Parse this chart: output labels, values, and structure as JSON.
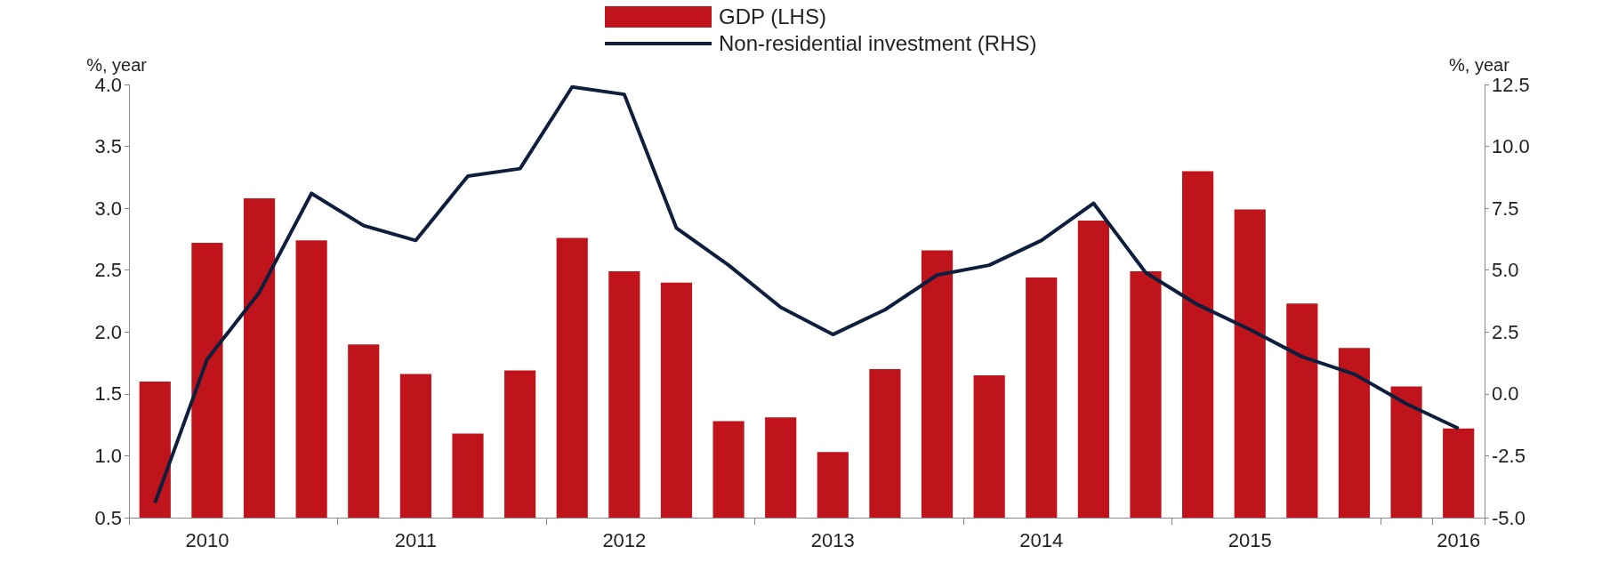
{
  "chart_data": {
    "type": "bar",
    "categories": [
      null,
      "2010",
      null,
      null,
      null,
      "2011",
      null,
      null,
      null,
      "2012",
      null,
      null,
      null,
      "2013",
      null,
      null,
      null,
      "2014",
      null,
      null,
      null,
      "2015",
      null,
      null,
      null,
      "2016"
    ],
    "series": [
      {
        "name": "GDP (LHS)",
        "color": "#c0141c",
        "values": [
          1.6,
          2.72,
          3.08,
          2.74,
          1.9,
          1.66,
          1.18,
          1.69,
          2.76,
          2.49,
          2.4,
          1.28,
          1.31,
          1.03,
          1.7,
          2.66,
          1.65,
          2.44,
          2.9,
          2.49,
          3.3,
          2.99,
          2.23,
          1.87,
          1.56,
          1.22
        ]
      },
      {
        "name": "Non-residential investment (RHS)",
        "type": "line",
        "axis": "y2",
        "color": "#0d1f3c",
        "values": [
          -4.4,
          1.4,
          4.1,
          8.1,
          6.8,
          6.2,
          8.8,
          9.1,
          12.4,
          12.1,
          6.7,
          5.2,
          3.5,
          2.4,
          3.4,
          4.8,
          5.2,
          6.2,
          7.7,
          4.9,
          3.6,
          2.6,
          1.5,
          0.8,
          -0.4,
          -1.4
        ]
      }
    ],
    "ylabel": "%, year",
    "y2label": "%, year",
    "ylim": [
      0.5,
      4.0
    ],
    "yticks": [
      {
        "value": 0.5,
        "label": "0.5"
      },
      {
        "value": 1,
        "label": "1.0"
      },
      {
        "value": 1.5,
        "label": "1.5"
      },
      {
        "value": 2,
        "label": "2.0"
      },
      {
        "value": 2.5,
        "label": "2.5"
      },
      {
        "value": 3,
        "label": "3.0"
      },
      {
        "value": 3.5,
        "label": "3.5"
      },
      {
        "value": 4,
        "label": "4.0"
      }
    ],
    "y2lim": [
      -5,
      12.5
    ],
    "y2ticks": [
      {
        "value": -5,
        "label": "-5.0"
      },
      {
        "value": -2.5,
        "label": "-2.5"
      },
      {
        "value": 0,
        "label": "0.0"
      },
      {
        "value": 2.5,
        "label": "2.5"
      },
      {
        "value": 5,
        "label": "5.0"
      },
      {
        "value": 7.5,
        "label": "7.5"
      },
      {
        "value": 10,
        "label": "10.0"
      },
      {
        "value": 12.5,
        "label": "12.5"
      }
    ],
    "grid": false,
    "legend": "top",
    "marker": "none",
    "line_style": "solid"
  }
}
